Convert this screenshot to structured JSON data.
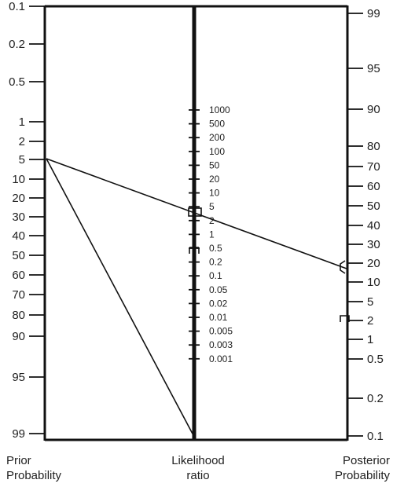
{
  "titles": {
    "prior": [
      "Prior",
      "Probability"
    ],
    "likelihood": [
      "Likelihood",
      "ratio"
    ],
    "posterior": [
      "Posterior",
      "Probability"
    ]
  },
  "scales": {
    "prior": [
      "0.1",
      "0.2",
      "0.5",
      "1",
      "2",
      "5",
      "10",
      "20",
      "30",
      "40",
      "50",
      "60",
      "70",
      "80",
      "90",
      "95",
      "99"
    ],
    "likelihood": [
      "1000",
      "500",
      "200",
      "100",
      "50",
      "20",
      "10",
      "5",
      "2",
      "1",
      "0.5",
      "0.2",
      "0.1",
      "0.05",
      "0.02",
      "0.01",
      "0.005",
      "0.003",
      "0.001"
    ],
    "posterior": [
      "99",
      "95",
      "90",
      "80",
      "70",
      "60",
      "50",
      "40",
      "30",
      "20",
      "10",
      "5",
      "2",
      "1",
      "0.5",
      "0.2",
      "0.1"
    ]
  },
  "lines": [
    {
      "name": "line-to-posterior",
      "from": {
        "axis": "prior",
        "value": "5"
      },
      "to": {
        "axis": "posterior",
        "value": "20"
      }
    },
    {
      "name": "line-to-lr-base",
      "from": {
        "axis": "prior",
        "value": "5"
      },
      "to": {
        "axis": "likelihood",
        "value": "bottom"
      }
    }
  ],
  "markers": [
    {
      "axis": "likelihood",
      "value": "5",
      "shape": "square"
    },
    {
      "axis": "likelihood",
      "value": "0.5",
      "shape": "bracket"
    },
    {
      "axis": "posterior",
      "value": "20",
      "shape": "bracket"
    },
    {
      "axis": "posterior",
      "value": "2",
      "shape": "bracket"
    }
  ],
  "colors": {
    "ink": "#111111",
    "text": "#222222",
    "background": "#ffffff"
  }
}
